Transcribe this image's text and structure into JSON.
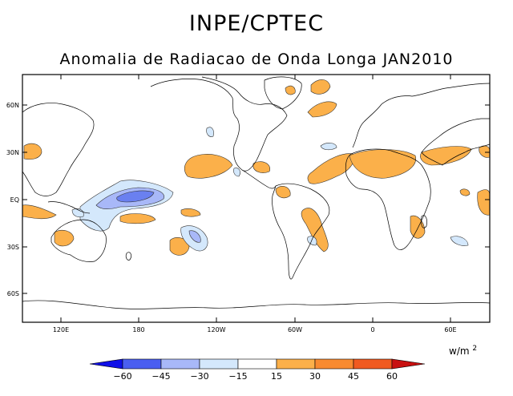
{
  "header": {
    "title": "INPE/CPTEC",
    "subtitle": "Anomalia de Radiacao de Onda Longa JAN2010"
  },
  "map": {
    "lon_ticks": [
      "120E",
      "180",
      "120W",
      "60W",
      "0",
      "60E"
    ],
    "lat_ticks": [
      "60N",
      "30N",
      "EQ",
      "30S",
      "60S"
    ]
  },
  "colorbar": {
    "units_base": "w/m",
    "units_exp": "2",
    "labels": [
      "−60",
      "−45",
      "−30",
      "−15",
      "15",
      "30",
      "45",
      "60"
    ],
    "colors": [
      "#1010e8",
      "#4a5ef0",
      "#a8b8f8",
      "#d4e8fc",
      "#ffffff",
      "#fbb04a",
      "#f88a30",
      "#f05a20",
      "#c81010"
    ]
  },
  "colors": {
    "positive_light": "#fbb04a",
    "negative_light": "#d4e8fc",
    "negative_mid": "#a8b8f8",
    "negative_dark": "#6a80f0"
  }
}
